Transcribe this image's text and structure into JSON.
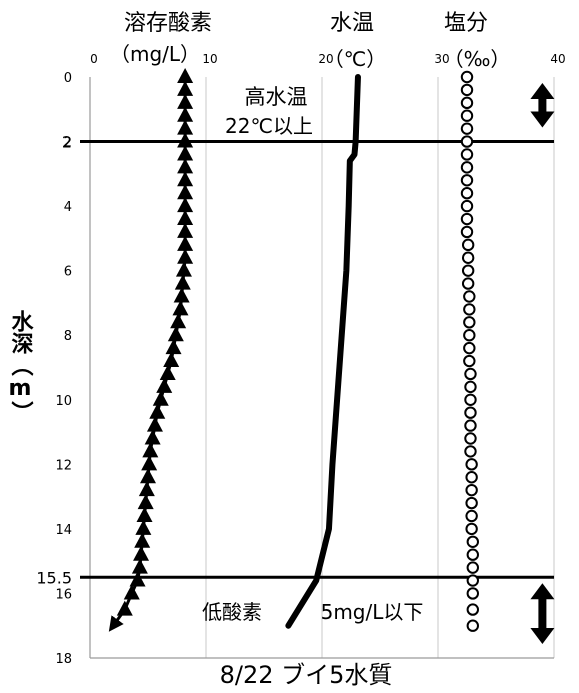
{
  "chart_data": {
    "type": "line",
    "title": "8/22 ブイ5水質",
    "ylabel": "水深（m）",
    "ylim": [
      0,
      18
    ],
    "y_ticks": [
      0,
      2,
      4,
      6,
      8,
      10,
      12,
      14,
      16,
      18
    ],
    "x_ticks": [
      0,
      10,
      20,
      30,
      40
    ],
    "xlim": [
      0,
      40
    ],
    "x_axis_position": "top",
    "grid": true,
    "series": [
      {
        "name": "溶存酸素",
        "unit": "（mg/L）",
        "marker": "triangle-filled",
        "color": "#000000",
        "x": [
          8.2,
          8.2,
          8.2,
          8.2,
          8.2,
          8.2,
          8.2,
          8.2,
          8.2,
          8.2,
          8.2,
          8.2,
          8.2,
          8.2,
          8.2,
          8.1,
          8.0,
          7.9,
          7.8,
          7.6,
          7.4,
          7.2,
          7.0,
          6.7,
          6.4,
          6.1,
          5.8,
          5.6,
          5.4,
          5.2,
          5.1,
          5.0,
          4.9,
          4.8,
          4.7,
          4.6,
          4.5,
          4.4,
          4.3,
          4.1,
          3.6,
          3.0,
          2.0
        ],
        "y": [
          0,
          0.4,
          0.8,
          1.2,
          1.6,
          2.0,
          2.4,
          2.8,
          3.2,
          3.6,
          4.0,
          4.4,
          4.8,
          5.2,
          5.6,
          6.0,
          6.4,
          6.8,
          7.2,
          7.6,
          8.0,
          8.4,
          8.8,
          9.2,
          9.6,
          10.0,
          10.4,
          10.8,
          11.2,
          11.6,
          12.0,
          12.4,
          12.8,
          13.2,
          13.6,
          14.0,
          14.4,
          14.8,
          15.2,
          15.6,
          16.0,
          16.5,
          17.0
        ]
      },
      {
        "name": "水温",
        "unit": "（℃）",
        "marker": "none",
        "color": "#000000",
        "x": [
          23.1,
          23.0,
          22.9,
          22.8,
          22.4,
          22.3,
          22.2,
          22.1,
          21.9,
          21.7,
          21.5,
          21.3,
          21.1,
          20.9,
          20.6,
          19.5,
          17.1
        ],
        "y": [
          0,
          1.0,
          2.0,
          2.4,
          2.6,
          4.0,
          5.0,
          6.0,
          7.0,
          8.0,
          9.0,
          10.0,
          11.0,
          12.0,
          14.0,
          15.6,
          17.0
        ]
      },
      {
        "name": "塩分",
        "unit": "（‰）",
        "marker": "circle-open",
        "color": "#000000",
        "x": [
          32.5,
          32.5,
          32.5,
          32.5,
          32.5,
          32.5,
          32.5,
          32.5,
          32.5,
          32.5,
          32.5,
          32.5,
          32.5,
          32.6,
          32.6,
          32.6,
          32.6,
          32.7,
          32.7,
          32.7,
          32.7,
          32.7,
          32.7,
          32.8,
          32.8,
          32.8,
          32.8,
          32.8,
          32.8,
          32.8,
          32.9,
          32.9,
          32.9,
          32.9,
          32.9,
          32.9,
          33.0,
          33.0,
          33.0,
          33.0,
          33.0,
          33.0,
          33.0
        ],
        "y": [
          0,
          0.4,
          0.8,
          1.2,
          1.6,
          2.0,
          2.4,
          2.8,
          3.2,
          3.6,
          4.0,
          4.4,
          4.8,
          5.2,
          5.6,
          6.0,
          6.4,
          6.8,
          7.2,
          7.6,
          8.0,
          8.4,
          8.8,
          9.2,
          9.6,
          10.0,
          10.4,
          10.8,
          11.2,
          11.6,
          12.0,
          12.4,
          12.8,
          13.2,
          13.6,
          14.0,
          14.4,
          14.8,
          15.2,
          15.6,
          16.0,
          16.5,
          17.0
        ]
      }
    ],
    "reference_lines": [
      {
        "y": 2,
        "label": "2"
      },
      {
        "y": 15.5,
        "label": "15.5"
      }
    ],
    "annotations": {
      "high_temp_line1": "高水温",
      "high_temp_line2": "22℃以上",
      "low_oxygen_a": "低酸素",
      "low_oxygen_b": "5mg/L以下"
    },
    "ranges": [
      {
        "from": 0,
        "to": 2,
        "x": 39
      },
      {
        "from": 15.5,
        "to": 18,
        "x": 39
      }
    ]
  }
}
